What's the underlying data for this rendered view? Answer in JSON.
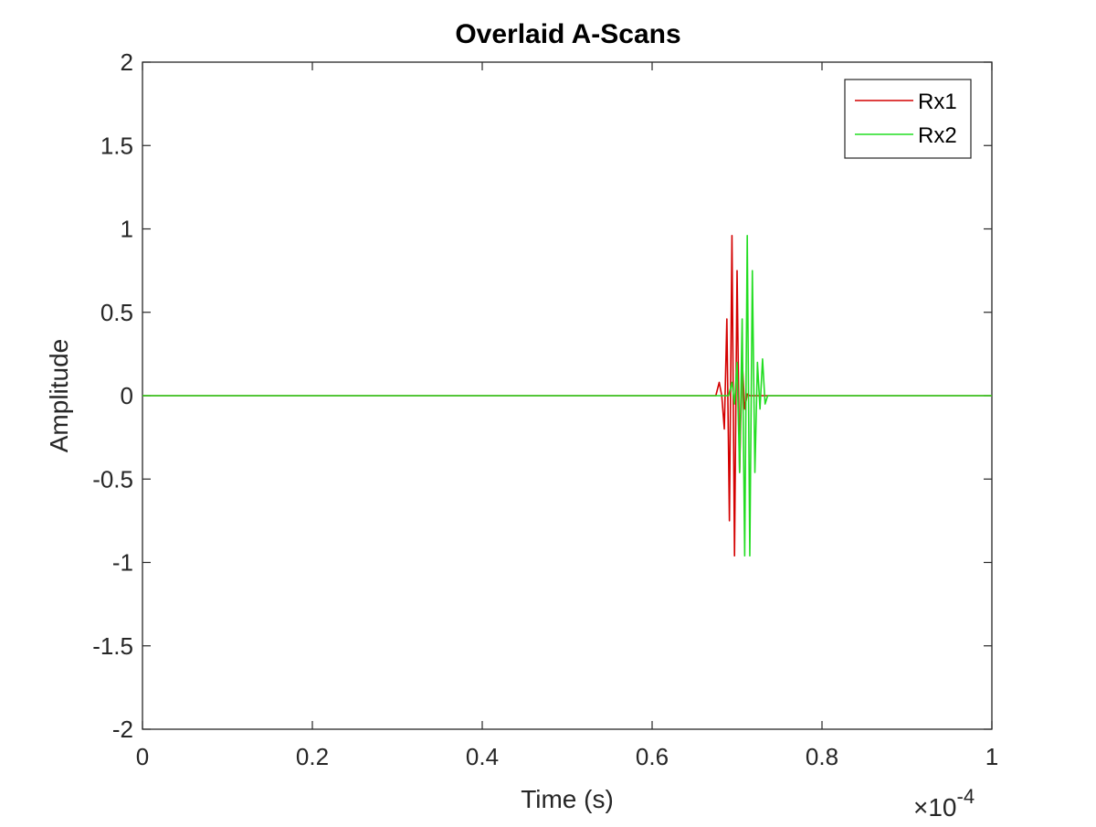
{
  "chart_data": {
    "type": "line",
    "title": "Overlaid A-Scans",
    "xlabel": "Time (s)",
    "ylabel": "Amplitude",
    "x_exponent_label": "×10",
    "x_exponent_power": "-4",
    "xlim": [
      0,
      1
    ],
    "ylim": [
      -2,
      2
    ],
    "x_ticks": [
      0,
      0.2,
      0.4,
      0.6,
      0.8,
      1
    ],
    "x_tick_labels": [
      "0",
      "0.2",
      "0.4",
      "0.6",
      "0.8",
      "1"
    ],
    "y_ticks": [
      2,
      1.5,
      1,
      0.5,
      0,
      -0.5,
      -1,
      -1.5,
      -2
    ],
    "y_tick_labels": [
      "2",
      "1.5",
      "1",
      "0.5",
      "0",
      "-0.5",
      "-1",
      "-1.5",
      "-2"
    ],
    "grid": false,
    "legend_position": "top-right",
    "series": [
      {
        "name": "Rx1",
        "color": "#d40000",
        "x": [
          0,
          0.675,
          0.679,
          0.682,
          0.685,
          0.688,
          0.691,
          0.694,
          0.697,
          0.7,
          0.703,
          0.706,
          0.709,
          0.712,
          0.715,
          0.718,
          0.721,
          0.724,
          0.727,
          0.73,
          0.734,
          0.738,
          1
        ],
        "y": [
          0,
          0,
          0.08,
          0,
          -0.2,
          0.46,
          -0.75,
          0.96,
          -0.96,
          0.75,
          -0.46,
          0.22,
          -0.08,
          0.01,
          0,
          0,
          0,
          0,
          0,
          0,
          0,
          0,
          0
        ]
      },
      {
        "name": "Rx2",
        "color": "#22dd22",
        "x": [
          0,
          0.69,
          0.694,
          0.697,
          0.7,
          0.703,
          0.706,
          0.709,
          0.712,
          0.715,
          0.718,
          0.721,
          0.724,
          0.727,
          0.73,
          0.733,
          0.736,
          0.739,
          1
        ],
        "y": [
          0,
          0,
          0.08,
          -0.05,
          0.2,
          -0.46,
          0.46,
          -0.96,
          0.96,
          -0.96,
          0.75,
          -0.46,
          0.2,
          -0.08,
          0.22,
          -0.05,
          0,
          0,
          0
        ]
      }
    ]
  }
}
